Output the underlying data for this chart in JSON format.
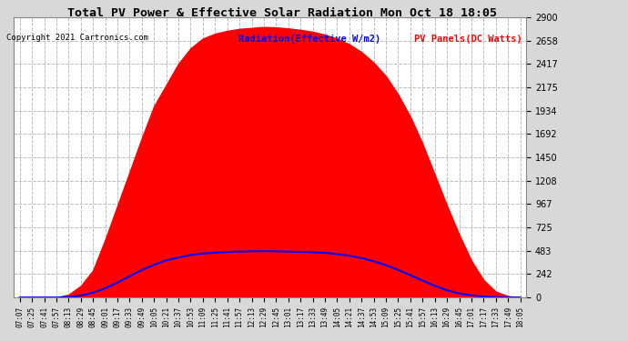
{
  "title": "Total PV Power & Effective Solar Radiation Mon Oct 18 18:05",
  "copyright": "Copyright 2021 Cartronics.com",
  "legend_radiation": "Radiation(Effective W/m2)",
  "legend_pv": "PV Panels(DC Watts)",
  "yticks": [
    0.0,
    241.7,
    483.4,
    725.0,
    966.7,
    1208.4,
    1450.1,
    1691.8,
    1933.5,
    2175.1,
    2416.8,
    2658.5,
    2900.2
  ],
  "ymax": 2900.2,
  "ymin": 0.0,
  "bg_color": "#d8d8d8",
  "plot_bg_color": "#ffffff",
  "grid_color": "#cccccc",
  "red_fill_color": "#ff0000",
  "blue_line_color": "#0000ff",
  "title_color": "#000000",
  "copyright_color": "#000000",
  "radiation_legend_color": "#0000ff",
  "pv_legend_color": "#ff0000",
  "x_time_labels": [
    "07:07",
    "07:25",
    "07:41",
    "07:57",
    "08:13",
    "08:29",
    "08:45",
    "09:01",
    "09:17",
    "09:33",
    "09:49",
    "10:05",
    "10:21",
    "10:37",
    "10:53",
    "11:09",
    "11:25",
    "11:41",
    "11:57",
    "12:13",
    "12:29",
    "12:45",
    "13:01",
    "13:17",
    "13:33",
    "13:49",
    "14:05",
    "14:21",
    "14:37",
    "14:53",
    "15:09",
    "15:25",
    "15:41",
    "15:57",
    "16:13",
    "16:29",
    "16:45",
    "17:01",
    "17:17",
    "17:33",
    "17:49",
    "18:05"
  ],
  "num_points": 42,
  "pv_values": [
    0,
    0,
    0,
    0,
    30,
    120,
    280,
    600,
    950,
    1300,
    1650,
    1980,
    2200,
    2420,
    2580,
    2680,
    2730,
    2760,
    2780,
    2790,
    2800,
    2795,
    2785,
    2770,
    2750,
    2720,
    2680,
    2620,
    2540,
    2430,
    2290,
    2100,
    1870,
    1590,
    1270,
    950,
    650,
    380,
    180,
    60,
    15,
    0
  ],
  "rad_values": [
    0,
    0,
    0,
    0,
    5,
    20,
    50,
    95,
    155,
    220,
    285,
    340,
    385,
    415,
    440,
    455,
    465,
    470,
    475,
    478,
    480,
    478,
    475,
    472,
    468,
    462,
    450,
    432,
    408,
    375,
    335,
    285,
    230,
    175,
    120,
    75,
    42,
    22,
    10,
    4,
    1,
    0
  ]
}
